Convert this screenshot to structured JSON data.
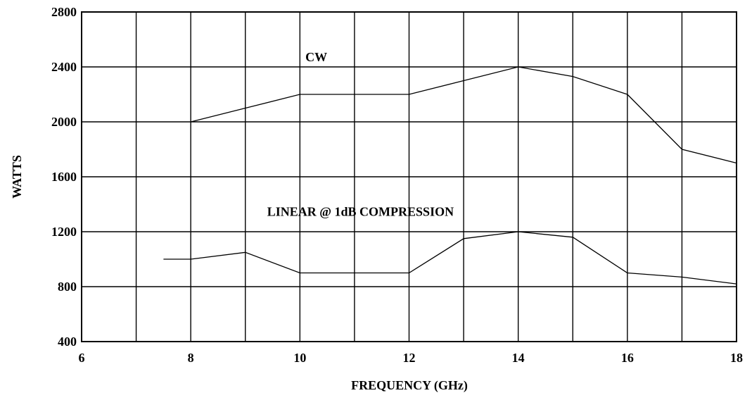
{
  "chart_data": {
    "type": "line",
    "title": "",
    "xlabel": "FREQUENCY (GHz)",
    "ylabel": "WATTS",
    "xlim": [
      6,
      18
    ],
    "ylim": [
      400,
      2800
    ],
    "xticks": [
      6,
      8,
      10,
      12,
      14,
      16,
      18
    ],
    "yticks": [
      400,
      800,
      1200,
      1600,
      2000,
      2400,
      2800
    ],
    "xtick_labels": [
      "6",
      "8",
      "10",
      "12",
      "14",
      "16",
      "18"
    ],
    "ytick_labels": [
      "400",
      "800",
      "1200",
      "1600",
      "2000",
      "2400",
      "2800"
    ],
    "grid": true,
    "grid_x_step": 1,
    "grid_y_step": 400,
    "line_color": "#000000",
    "series": [
      {
        "name": "CW",
        "x": [
          8,
          9,
          10,
          11,
          12,
          13,
          14,
          15,
          16,
          17,
          18
        ],
        "y": [
          2000,
          2100,
          2200,
          2200,
          2200,
          2300,
          2400,
          2330,
          2200,
          1800,
          1700
        ]
      },
      {
        "name": "LINEAR @ 1dB COMPRESSION",
        "x": [
          7.5,
          8,
          9,
          10,
          11,
          12,
          13,
          14,
          15,
          16,
          17,
          18
        ],
        "y": [
          1000,
          1000,
          1050,
          900,
          900,
          900,
          1150,
          1200,
          1160,
          900,
          870,
          820
        ]
      }
    ],
    "annotations": [
      {
        "text": "CW",
        "x": 10.1,
        "y": 2440
      },
      {
        "text": "LINEAR @ 1dB COMPRESSION",
        "x": 9.4,
        "y": 1315
      }
    ]
  }
}
